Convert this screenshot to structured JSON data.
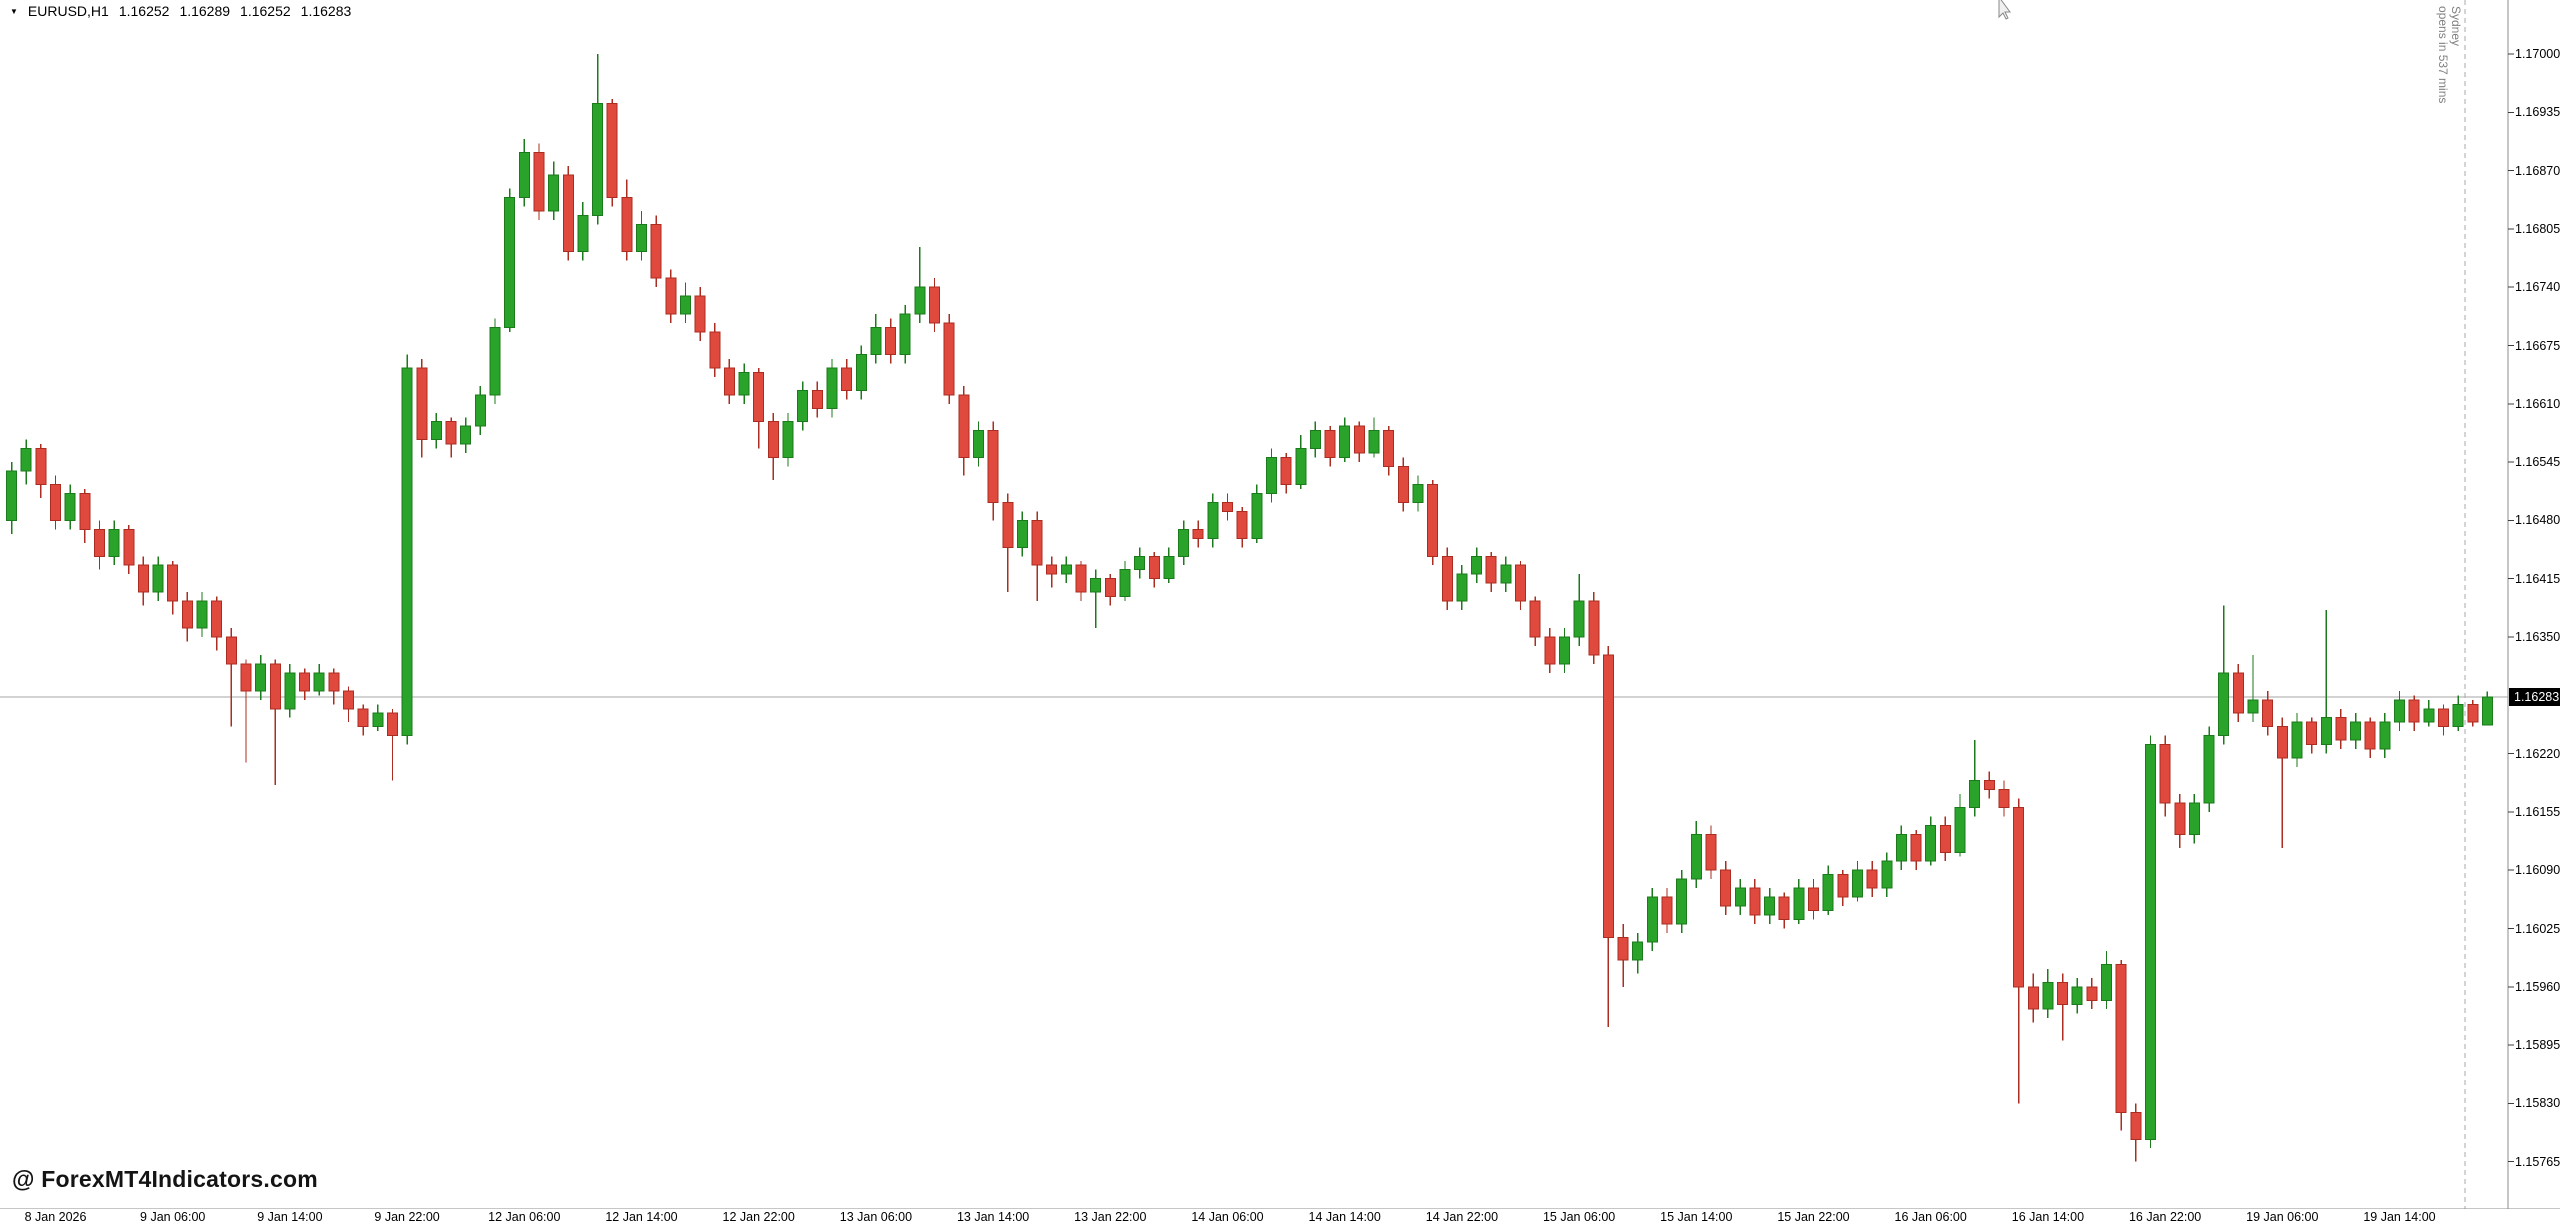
{
  "quote": {
    "marker": "▼",
    "symbol_period": "EURUSD,H1",
    "open": "1.16252",
    "high": "1.16289",
    "low": "1.16252",
    "close": "1.16283"
  },
  "watermark": {
    "text": "@ ForexMT4Indicators.com"
  },
  "session": {
    "line1": "opens in 537 mins",
    "line2": "Sydney"
  },
  "price_axis": {
    "ticks": [
      "1.17000",
      "1.16935",
      "1.16870",
      "1.16805",
      "1.16740",
      "1.16675",
      "1.16610",
      "1.16545",
      "1.16480",
      "1.16415",
      "1.16350",
      "1.16220",
      "1.16155",
      "1.16090",
      "1.16025",
      "1.15960",
      "1.15895",
      "1.15830",
      "1.15765"
    ],
    "current_price": "1.16283"
  },
  "time_axis": {
    "labels": [
      {
        "index": 3,
        "text": "8 Jan 2026"
      },
      {
        "index": 11,
        "text": "9 Jan 06:00"
      },
      {
        "index": 19,
        "text": "9 Jan 14:00"
      },
      {
        "index": 27,
        "text": "9 Jan 22:00"
      },
      {
        "index": 35,
        "text": "12 Jan 06:00"
      },
      {
        "index": 43,
        "text": "12 Jan 14:00"
      },
      {
        "index": 51,
        "text": "12 Jan 22:00"
      },
      {
        "index": 59,
        "text": "13 Jan 06:00"
      },
      {
        "index": 67,
        "text": "13 Jan 14:00"
      },
      {
        "index": 75,
        "text": "13 Jan 22:00"
      },
      {
        "index": 83,
        "text": "14 Jan 06:00"
      },
      {
        "index": 91,
        "text": "14 Jan 14:00"
      },
      {
        "index": 99,
        "text": "14 Jan 22:00"
      },
      {
        "index": 107,
        "text": "15 Jan 06:00"
      },
      {
        "index": 115,
        "text": "15 Jan 14:00"
      },
      {
        "index": 123,
        "text": "15 Jan 22:00"
      },
      {
        "index": 131,
        "text": "16 Jan 06:00"
      },
      {
        "index": 139,
        "text": "16 Jan 14:00"
      },
      {
        "index": 147,
        "text": "16 Jan 22:00"
      },
      {
        "index": 155,
        "text": "19 Jan 06:00"
      },
      {
        "index": 163,
        "text": "19 Jan 14:00"
      }
    ]
  },
  "colors": {
    "bull": "#2aa32a",
    "bull_border": "#1b7a1b",
    "bear": "#e0493d",
    "bear_border": "#ab2d22",
    "price_line": "#a6a6a6",
    "session_line": "#a9a9a9",
    "axis_line": "#8c8c8c",
    "tick": "#3c3c3c",
    "badge_bg": "#000000",
    "badge_text": "#ffffff",
    "axis_text": "#000000",
    "session_text": "#808080",
    "watermark_text": "#141414"
  },
  "chart_data": {
    "type": "candlestick",
    "symbol": "EURUSD",
    "timeframe": "H1",
    "y_axis": {
      "max": 1.17,
      "min": 1.15765,
      "tick_step": 0.00065
    },
    "x_axis": {
      "labels_every_n_candles": 8,
      "first_label_candle_index": 3
    },
    "current_price": 1.16283,
    "last_candle_ohlc": [
      1.16252,
      1.16289,
      1.16252,
      1.16283
    ],
    "candles": [
      [
        1.1648,
        1.16545,
        1.16465,
        1.16535
      ],
      [
        1.16535,
        1.1657,
        1.1652,
        1.1656
      ],
      [
        1.1656,
        1.16565,
        1.16505,
        1.1652
      ],
      [
        1.1652,
        1.1653,
        1.1647,
        1.1648
      ],
      [
        1.1648,
        1.1652,
        1.1647,
        1.1651
      ],
      [
        1.1651,
        1.16515,
        1.16455,
        1.1647
      ],
      [
        1.1647,
        1.1648,
        1.16425,
        1.1644
      ],
      [
        1.1644,
        1.1648,
        1.1643,
        1.1647
      ],
      [
        1.1647,
        1.16475,
        1.1642,
        1.1643
      ],
      [
        1.1643,
        1.1644,
        1.16385,
        1.164
      ],
      [
        1.164,
        1.1644,
        1.1639,
        1.1643
      ],
      [
        1.1643,
        1.16435,
        1.16375,
        1.1639
      ],
      [
        1.1639,
        1.164,
        1.16345,
        1.1636
      ],
      [
        1.1636,
        1.164,
        1.1635,
        1.1639
      ],
      [
        1.1639,
        1.16395,
        1.16335,
        1.1635
      ],
      [
        1.1635,
        1.1636,
        1.1625,
        1.1632
      ],
      [
        1.1632,
        1.16325,
        1.1621,
        1.1629
      ],
      [
        1.1629,
        1.1633,
        1.1628,
        1.1632
      ],
      [
        1.1632,
        1.16325,
        1.16185,
        1.1627
      ],
      [
        1.1627,
        1.1632,
        1.1626,
        1.1631
      ],
      [
        1.1631,
        1.16315,
        1.1628,
        1.1629
      ],
      [
        1.1629,
        1.1632,
        1.16285,
        1.1631
      ],
      [
        1.1631,
        1.16315,
        1.16275,
        1.1629
      ],
      [
        1.1629,
        1.16295,
        1.16255,
        1.1627
      ],
      [
        1.1627,
        1.16275,
        1.1624,
        1.1625
      ],
      [
        1.1625,
        1.16275,
        1.16245,
        1.16265
      ],
      [
        1.16265,
        1.1627,
        1.1619,
        1.1624
      ],
      [
        1.1624,
        1.16665,
        1.1623,
        1.1665
      ],
      [
        1.1665,
        1.1666,
        1.1655,
        1.1657
      ],
      [
        1.1657,
        1.166,
        1.1656,
        1.1659
      ],
      [
        1.1659,
        1.16595,
        1.1655,
        1.16565
      ],
      [
        1.16565,
        1.16595,
        1.16555,
        1.16585
      ],
      [
        1.16585,
        1.1663,
        1.16575,
        1.1662
      ],
      [
        1.1662,
        1.16705,
        1.1661,
        1.16695
      ],
      [
        1.16695,
        1.1685,
        1.1669,
        1.1684
      ],
      [
        1.1684,
        1.16905,
        1.1683,
        1.1689
      ],
      [
        1.1689,
        1.169,
        1.16815,
        1.16825
      ],
      [
        1.16825,
        1.1688,
        1.16815,
        1.16865
      ],
      [
        1.16865,
        1.16875,
        1.1677,
        1.1678
      ],
      [
        1.1678,
        1.16835,
        1.1677,
        1.1682
      ],
      [
        1.1682,
        1.17,
        1.1681,
        1.16945
      ],
      [
        1.16945,
        1.1695,
        1.1683,
        1.1684
      ],
      [
        1.1684,
        1.1686,
        1.1677,
        1.1678
      ],
      [
        1.1678,
        1.16825,
        1.1677,
        1.1681
      ],
      [
        1.1681,
        1.1682,
        1.1674,
        1.1675
      ],
      [
        1.1675,
        1.1676,
        1.167,
        1.1671
      ],
      [
        1.1671,
        1.16745,
        1.167,
        1.1673
      ],
      [
        1.1673,
        1.1674,
        1.1668,
        1.1669
      ],
      [
        1.1669,
        1.167,
        1.1664,
        1.1665
      ],
      [
        1.1665,
        1.1666,
        1.1661,
        1.1662
      ],
      [
        1.1662,
        1.16655,
        1.1661,
        1.16645
      ],
      [
        1.16645,
        1.1665,
        1.1656,
        1.1659
      ],
      [
        1.1659,
        1.166,
        1.16525,
        1.1655
      ],
      [
        1.1655,
        1.166,
        1.1654,
        1.1659
      ],
      [
        1.1659,
        1.16635,
        1.1658,
        1.16625
      ],
      [
        1.16625,
        1.16635,
        1.16595,
        1.16605
      ],
      [
        1.16605,
        1.1666,
        1.16595,
        1.1665
      ],
      [
        1.1665,
        1.1666,
        1.16615,
        1.16625
      ],
      [
        1.16625,
        1.16675,
        1.16615,
        1.16665
      ],
      [
        1.16665,
        1.1671,
        1.16655,
        1.16695
      ],
      [
        1.16695,
        1.16705,
        1.16655,
        1.16665
      ],
      [
        1.16665,
        1.1672,
        1.16655,
        1.1671
      ],
      [
        1.1671,
        1.16785,
        1.167,
        1.1674
      ],
      [
        1.1674,
        1.1675,
        1.1669,
        1.167
      ],
      [
        1.167,
        1.1671,
        1.1661,
        1.1662
      ],
      [
        1.1662,
        1.1663,
        1.1653,
        1.1655
      ],
      [
        1.1655,
        1.1659,
        1.1654,
        1.1658
      ],
      [
        1.1658,
        1.1659,
        1.1648,
        1.165
      ],
      [
        1.165,
        1.1651,
        1.164,
        1.1645
      ],
      [
        1.1645,
        1.1649,
        1.1644,
        1.1648
      ],
      [
        1.1648,
        1.1649,
        1.1639,
        1.1643
      ],
      [
        1.1643,
        1.1644,
        1.16405,
        1.1642
      ],
      [
        1.1642,
        1.1644,
        1.1641,
        1.1643
      ],
      [
        1.1643,
        1.16435,
        1.1639,
        1.164
      ],
      [
        1.164,
        1.16425,
        1.1636,
        1.16415
      ],
      [
        1.16415,
        1.1642,
        1.16385,
        1.16395
      ],
      [
        1.16395,
        1.16435,
        1.1639,
        1.16425
      ],
      [
        1.16425,
        1.1645,
        1.16415,
        1.1644
      ],
      [
        1.1644,
        1.16445,
        1.16405,
        1.16415
      ],
      [
        1.16415,
        1.1645,
        1.1641,
        1.1644
      ],
      [
        1.1644,
        1.1648,
        1.1643,
        1.1647
      ],
      [
        1.1647,
        1.1648,
        1.1645,
        1.1646
      ],
      [
        1.1646,
        1.1651,
        1.1645,
        1.165
      ],
      [
        1.165,
        1.1651,
        1.1648,
        1.1649
      ],
      [
        1.1649,
        1.16495,
        1.1645,
        1.1646
      ],
      [
        1.1646,
        1.1652,
        1.16455,
        1.1651
      ],
      [
        1.1651,
        1.1656,
        1.165,
        1.1655
      ],
      [
        1.1655,
        1.16555,
        1.1651,
        1.1652
      ],
      [
        1.1652,
        1.16575,
        1.16515,
        1.1656
      ],
      [
        1.1656,
        1.1659,
        1.1655,
        1.1658
      ],
      [
        1.1658,
        1.16585,
        1.1654,
        1.1655
      ],
      [
        1.1655,
        1.16595,
        1.16545,
        1.16585
      ],
      [
        1.16585,
        1.1659,
        1.16545,
        1.16555
      ],
      [
        1.16555,
        1.16595,
        1.1655,
        1.1658
      ],
      [
        1.1658,
        1.16585,
        1.1653,
        1.1654
      ],
      [
        1.1654,
        1.1655,
        1.1649,
        1.165
      ],
      [
        1.165,
        1.1653,
        1.1649,
        1.1652
      ],
      [
        1.1652,
        1.16525,
        1.1643,
        1.1644
      ],
      [
        1.1644,
        1.1645,
        1.1638,
        1.1639
      ],
      [
        1.1639,
        1.1643,
        1.1638,
        1.1642
      ],
      [
        1.1642,
        1.1645,
        1.1641,
        1.1644
      ],
      [
        1.1644,
        1.16445,
        1.164,
        1.1641
      ],
      [
        1.1641,
        1.1644,
        1.164,
        1.1643
      ],
      [
        1.1643,
        1.16435,
        1.1638,
        1.1639
      ],
      [
        1.1639,
        1.16395,
        1.1634,
        1.1635
      ],
      [
        1.1635,
        1.1636,
        1.1631,
        1.1632
      ],
      [
        1.1632,
        1.1636,
        1.1631,
        1.1635
      ],
      [
        1.1635,
        1.1642,
        1.1634,
        1.1639
      ],
      [
        1.1639,
        1.164,
        1.1632,
        1.1633
      ],
      [
        1.1633,
        1.1634,
        1.15915,
        1.16015
      ],
      [
        1.16015,
        1.1603,
        1.1596,
        1.1599
      ],
      [
        1.1599,
        1.1602,
        1.15975,
        1.1601
      ],
      [
        1.1601,
        1.1607,
        1.16,
        1.1606
      ],
      [
        1.1606,
        1.1607,
        1.1602,
        1.1603
      ],
      [
        1.1603,
        1.1609,
        1.1602,
        1.1608
      ],
      [
        1.1608,
        1.16145,
        1.1607,
        1.1613
      ],
      [
        1.1613,
        1.1614,
        1.1608,
        1.1609
      ],
      [
        1.1609,
        1.161,
        1.1604,
        1.1605
      ],
      [
        1.1605,
        1.1608,
        1.1604,
        1.1607
      ],
      [
        1.1607,
        1.1608,
        1.1603,
        1.1604
      ],
      [
        1.1604,
        1.1607,
        1.1603,
        1.1606
      ],
      [
        1.1606,
        1.16065,
        1.16025,
        1.16035
      ],
      [
        1.16035,
        1.1608,
        1.1603,
        1.1607
      ],
      [
        1.1607,
        1.1608,
        1.16035,
        1.16045
      ],
      [
        1.16045,
        1.16095,
        1.1604,
        1.16085
      ],
      [
        1.16085,
        1.1609,
        1.1605,
        1.1606
      ],
      [
        1.1606,
        1.161,
        1.16055,
        1.1609
      ],
      [
        1.1609,
        1.161,
        1.1606,
        1.1607
      ],
      [
        1.1607,
        1.1611,
        1.1606,
        1.161
      ],
      [
        1.161,
        1.1614,
        1.1609,
        1.1613
      ],
      [
        1.1613,
        1.16135,
        1.1609,
        1.161
      ],
      [
        1.161,
        1.1615,
        1.16095,
        1.1614
      ],
      [
        1.1614,
        1.1615,
        1.161,
        1.1611
      ],
      [
        1.1611,
        1.16175,
        1.16105,
        1.1616
      ],
      [
        1.1616,
        1.16235,
        1.1615,
        1.1619
      ],
      [
        1.1619,
        1.162,
        1.1617,
        1.1618
      ],
      [
        1.1618,
        1.1619,
        1.1615,
        1.1616
      ],
      [
        1.1616,
        1.1617,
        1.1583,
        1.1596
      ],
      [
        1.1596,
        1.15975,
        1.1592,
        1.15935
      ],
      [
        1.15935,
        1.1598,
        1.15925,
        1.15965
      ],
      [
        1.15965,
        1.15975,
        1.159,
        1.1594
      ],
      [
        1.1594,
        1.1597,
        1.1593,
        1.1596
      ],
      [
        1.1596,
        1.1597,
        1.15935,
        1.15945
      ],
      [
        1.15945,
        1.16,
        1.15935,
        1.15985
      ],
      [
        1.15985,
        1.1599,
        1.158,
        1.1582
      ],
      [
        1.1582,
        1.1583,
        1.15765,
        1.1579
      ],
      [
        1.1579,
        1.1624,
        1.1578,
        1.1623
      ],
      [
        1.1623,
        1.1624,
        1.1615,
        1.16165
      ],
      [
        1.16165,
        1.16175,
        1.16115,
        1.1613
      ],
      [
        1.1613,
        1.16175,
        1.1612,
        1.16165
      ],
      [
        1.16165,
        1.1625,
        1.16155,
        1.1624
      ],
      [
        1.1624,
        1.16385,
        1.1623,
        1.1631
      ],
      [
        1.1631,
        1.1632,
        1.16255,
        1.16265
      ],
      [
        1.16265,
        1.1633,
        1.16255,
        1.1628
      ],
      [
        1.1628,
        1.1629,
        1.1624,
        1.1625
      ],
      [
        1.1625,
        1.1626,
        1.16115,
        1.16215
      ],
      [
        1.16215,
        1.16265,
        1.16205,
        1.16255
      ],
      [
        1.16255,
        1.1626,
        1.1622,
        1.1623
      ],
      [
        1.1623,
        1.1638,
        1.1622,
        1.1626
      ],
      [
        1.1626,
        1.1627,
        1.16225,
        1.16235
      ],
      [
        1.16235,
        1.16265,
        1.16225,
        1.16255
      ],
      [
        1.16255,
        1.1626,
        1.16215,
        1.16225
      ],
      [
        1.16225,
        1.16265,
        1.16215,
        1.16255
      ],
      [
        1.16255,
        1.1629,
        1.16245,
        1.1628
      ],
      [
        1.1628,
        1.16285,
        1.16245,
        1.16255
      ],
      [
        1.16255,
        1.1628,
        1.1625,
        1.1627
      ],
      [
        1.1627,
        1.16275,
        1.1624,
        1.1625
      ],
      [
        1.1625,
        1.16285,
        1.16245,
        1.16275
      ],
      [
        1.16275,
        1.1628,
        1.1625,
        1.16255
      ],
      [
        1.16252,
        1.16289,
        1.16252,
        1.16283
      ]
    ]
  }
}
